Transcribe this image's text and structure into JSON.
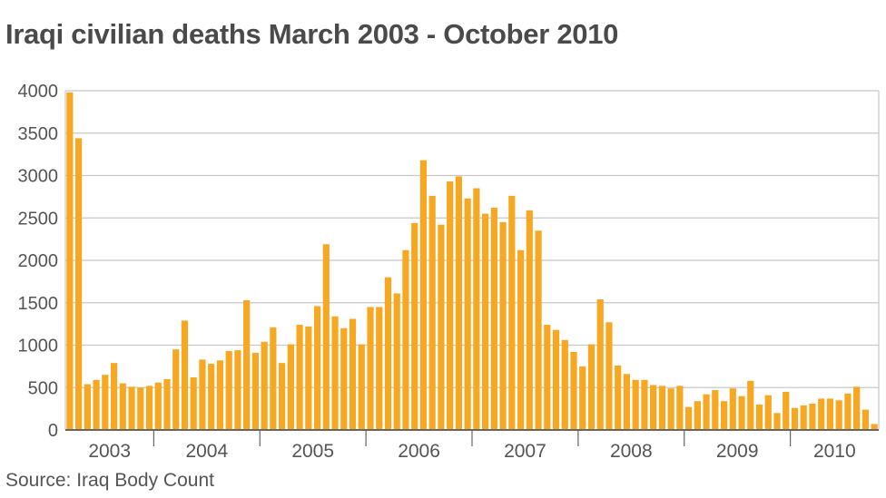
{
  "title": "Iraqi civilian deaths March 2003 - October 2010",
  "source": "Source: Iraq Body Count",
  "colors": {
    "bar": "#F7A823",
    "bar_edge": "#E89A12",
    "grid": "#c8c8c8",
    "axis": "#666666",
    "text": "#4a4a4a"
  },
  "chart_data": {
    "type": "bar",
    "title": "Iraqi civilian deaths March 2003 - October 2010",
    "xlabel": "",
    "ylabel": "",
    "ylim": [
      0,
      4000
    ],
    "yticks": [
      0,
      500,
      1000,
      1500,
      2000,
      2500,
      3000,
      3500,
      4000
    ],
    "year_labels": [
      "2003",
      "2004",
      "2005",
      "2006",
      "2007",
      "2008",
      "2009",
      "2010"
    ],
    "grid": true,
    "categories": [
      "Mar 2003",
      "Apr 2003",
      "May 2003",
      "Jun 2003",
      "Jul 2003",
      "Aug 2003",
      "Sep 2003",
      "Oct 2003",
      "Nov 2003",
      "Dec 2003",
      "Jan 2004",
      "Feb 2004",
      "Mar 2004",
      "Apr 2004",
      "May 2004",
      "Jun 2004",
      "Jul 2004",
      "Aug 2004",
      "Sep 2004",
      "Oct 2004",
      "Nov 2004",
      "Dec 2004",
      "Jan 2005",
      "Feb 2005",
      "Mar 2005",
      "Apr 2005",
      "May 2005",
      "Jun 2005",
      "Jul 2005",
      "Aug 2005",
      "Sep 2005",
      "Oct 2005",
      "Nov 2005",
      "Dec 2005",
      "Jan 2006",
      "Feb 2006",
      "Mar 2006",
      "Apr 2006",
      "May 2006",
      "Jun 2006",
      "Jul 2006",
      "Aug 2006",
      "Sep 2006",
      "Oct 2006",
      "Nov 2006",
      "Dec 2006",
      "Jan 2007",
      "Feb 2007",
      "Mar 2007",
      "Apr 2007",
      "May 2007",
      "Jun 2007",
      "Jul 2007",
      "Aug 2007",
      "Sep 2007",
      "Oct 2007",
      "Nov 2007",
      "Dec 2007",
      "Jan 2008",
      "Feb 2008",
      "Mar 2008",
      "Apr 2008",
      "May 2008",
      "Jun 2008",
      "Jul 2008",
      "Aug 2008",
      "Sep 2008",
      "Oct 2008",
      "Nov 2008",
      "Dec 2008",
      "Jan 2009",
      "Feb 2009",
      "Mar 2009",
      "Apr 2009",
      "May 2009",
      "Jun 2009",
      "Jul 2009",
      "Aug 2009",
      "Sep 2009",
      "Oct 2009",
      "Nov 2009",
      "Dec 2009",
      "Jan 2010",
      "Feb 2010",
      "Mar 2010",
      "Apr 2010",
      "May 2010",
      "Jun 2010",
      "Jul 2010",
      "Aug 2010",
      "Sep 2010",
      "Oct 2010"
    ],
    "values": [
      3980,
      3440,
      540,
      590,
      650,
      790,
      550,
      510,
      500,
      520,
      560,
      600,
      950,
      1290,
      620,
      830,
      780,
      820,
      930,
      940,
      1530,
      910,
      1040,
      1210,
      790,
      1010,
      1240,
      1220,
      1460,
      2190,
      1340,
      1200,
      1310,
      1010,
      1450,
      1450,
      1800,
      1610,
      2120,
      2440,
      3180,
      2760,
      2420,
      2930,
      2990,
      2730,
      2850,
      2550,
      2620,
      2450,
      2760,
      2120,
      2590,
      2350,
      1240,
      1180,
      1060,
      920,
      750,
      1010,
      1540,
      1270,
      760,
      660,
      590,
      590,
      530,
      520,
      490,
      520,
      270,
      340,
      420,
      470,
      340,
      490,
      400,
      580,
      300,
      410,
      200,
      450,
      260,
      290,
      310,
      370,
      370,
      350,
      430,
      510,
      240,
      70
    ]
  }
}
